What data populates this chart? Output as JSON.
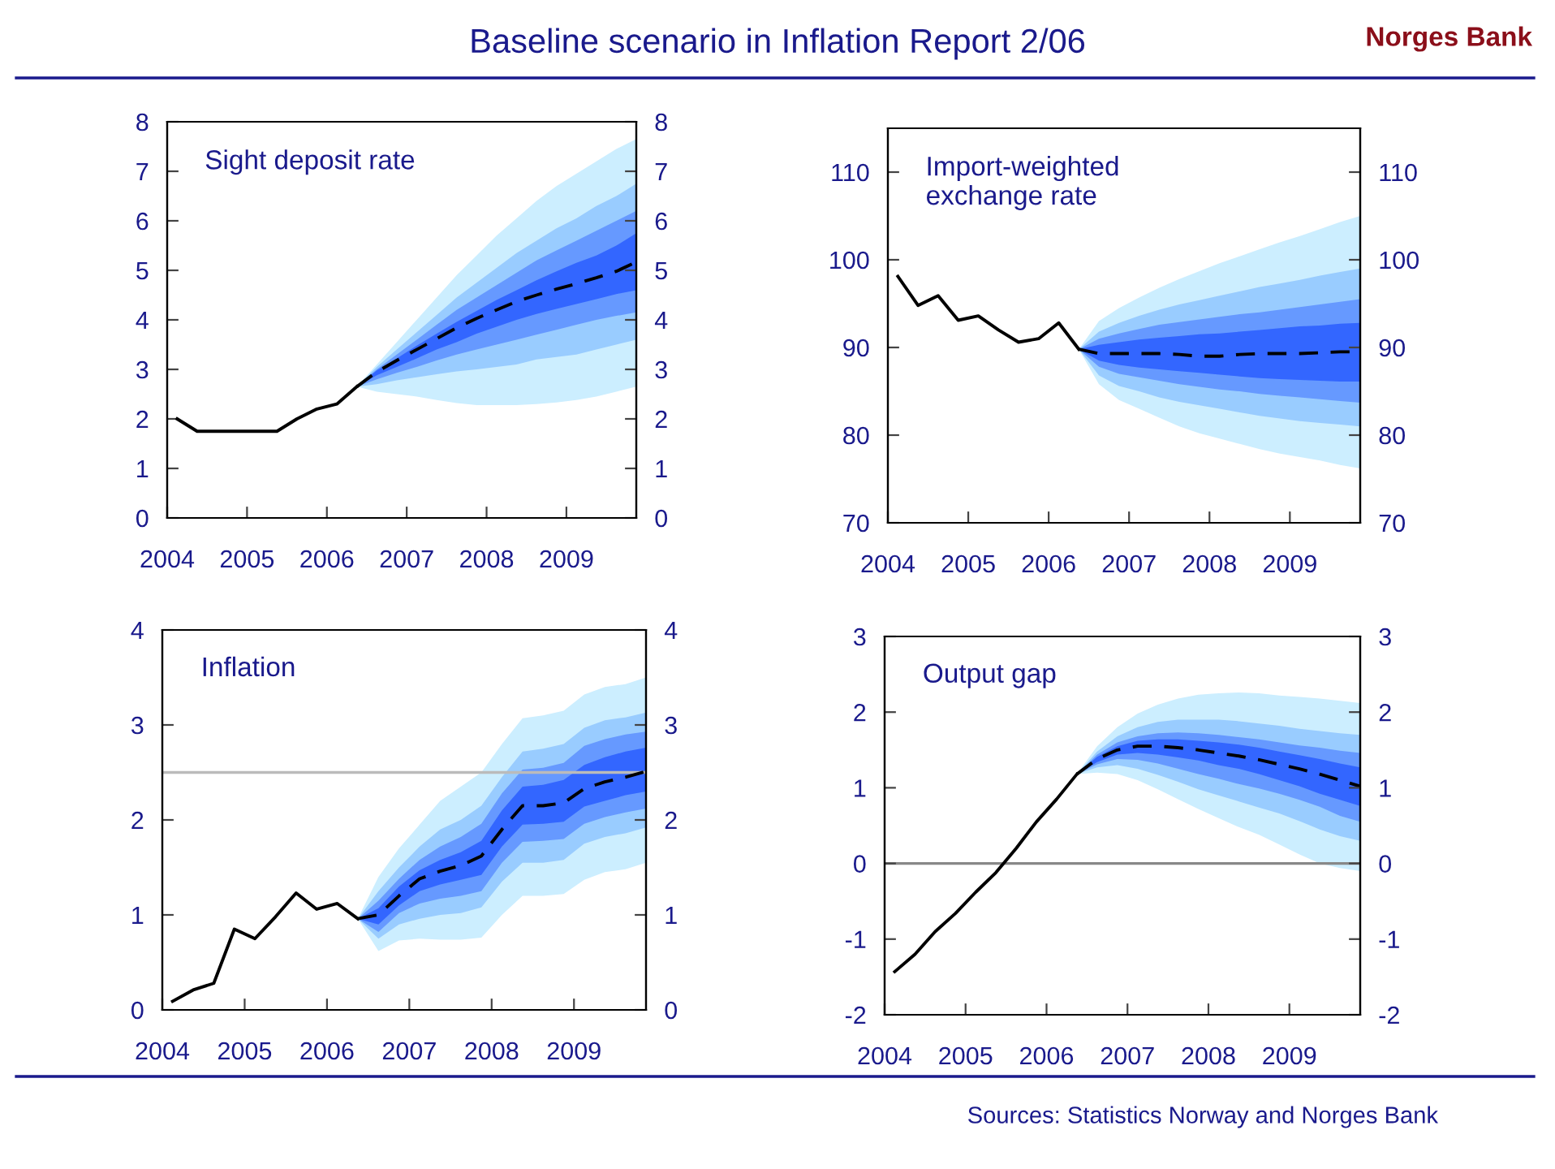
{
  "chart_data": [
    {
      "type": "other",
      "title": "Baseline scenario in Inflation Report 2/06",
      "annotations": [
        "Norges Bank",
        "Sources: Statistics Norway and Norges Bank"
      ]
    },
    {
      "type": "line",
      "title": "Sight deposit rate",
      "xlim": [
        2004,
        2009.875
      ],
      "xticks": [
        2004,
        2005,
        2006,
        2007,
        2008,
        2009
      ],
      "ylim": [
        0,
        8
      ],
      "yticks": [
        0,
        1,
        2,
        3,
        4,
        5,
        6,
        7,
        8
      ],
      "y2lim": [
        0,
        8
      ],
      "y2ticks": [
        0,
        1,
        2,
        3,
        4,
        5,
        6,
        7,
        8
      ],
      "series": [
        {
          "color": "#cceeff",
          "x": [
            2006.375,
            2006.625,
            2006.875,
            2007.125,
            2007.375,
            2007.625,
            2007.875,
            2008.125,
            2008.375,
            2008.625,
            2008.875,
            2009.125,
            2009.375,
            2009.625,
            2009.875
          ],
          "values": [
            null,
            null,
            null,
            null,
            null,
            null,
            null,
            null,
            null,
            null,
            null,
            null,
            null,
            null,
            null
          ],
          "lower": [
            2.65,
            2.55,
            2.5,
            2.45,
            2.38,
            2.32,
            2.28,
            2.28,
            2.28,
            2.3,
            2.33,
            2.38,
            2.45,
            2.55,
            2.65
          ],
          "upper": [
            2.65,
            3.1,
            3.55,
            4.0,
            4.45,
            4.9,
            5.3,
            5.7,
            6.05,
            6.4,
            6.7,
            6.95,
            7.2,
            7.45,
            7.65
          ]
        },
        {
          "color": "#99ccff",
          "x": [
            2006.375,
            2006.625,
            2006.875,
            2007.125,
            2007.375,
            2007.625,
            2007.875,
            2008.125,
            2008.375,
            2008.625,
            2008.875,
            2009.125,
            2009.375,
            2009.625,
            2009.875
          ],
          "values": [
            null,
            null,
            null,
            null,
            null,
            null,
            null,
            null,
            null,
            null,
            null,
            null,
            null,
            null,
            null
          ],
          "lower": [
            2.65,
            2.7,
            2.78,
            2.84,
            2.9,
            2.96,
            3.0,
            3.05,
            3.1,
            3.2,
            3.25,
            3.3,
            3.4,
            3.5,
            3.6
          ],
          "upper": [
            2.65,
            3.05,
            3.4,
            3.75,
            4.1,
            4.45,
            4.75,
            5.05,
            5.35,
            5.6,
            5.85,
            6.05,
            6.3,
            6.5,
            6.75
          ]
        },
        {
          "color": "#6699ff",
          "x": [
            2006.375,
            2006.625,
            2006.875,
            2007.125,
            2007.375,
            2007.625,
            2007.875,
            2008.125,
            2008.375,
            2008.625,
            2008.875,
            2009.125,
            2009.375,
            2009.625,
            2009.875
          ],
          "values": [
            null,
            null,
            null,
            null,
            null,
            null,
            null,
            null,
            null,
            null,
            null,
            null,
            null,
            null,
            null
          ],
          "lower": [
            2.65,
            2.8,
            2.93,
            3.05,
            3.18,
            3.3,
            3.4,
            3.5,
            3.6,
            3.7,
            3.8,
            3.9,
            4.0,
            4.08,
            4.15
          ],
          "upper": [
            2.65,
            3.0,
            3.3,
            3.6,
            3.9,
            4.2,
            4.45,
            4.7,
            4.95,
            5.2,
            5.4,
            5.6,
            5.8,
            6.0,
            6.2
          ]
        },
        {
          "color": "#3366ff",
          "x": [
            2006.375,
            2006.625,
            2006.875,
            2007.125,
            2007.375,
            2007.625,
            2007.875,
            2008.125,
            2008.375,
            2008.625,
            2008.875,
            2009.125,
            2009.375,
            2009.625,
            2009.875
          ],
          "values": [
            null,
            null,
            null,
            null,
            null,
            null,
            null,
            null,
            null,
            null,
            null,
            null,
            null,
            null,
            null
          ],
          "lower": [
            2.65,
            2.88,
            3.05,
            3.22,
            3.4,
            3.55,
            3.72,
            3.86,
            4.0,
            4.12,
            4.22,
            4.32,
            4.42,
            4.52,
            4.6
          ],
          "upper": [
            2.65,
            2.98,
            3.22,
            3.48,
            3.72,
            3.96,
            4.18,
            4.4,
            4.6,
            4.8,
            4.98,
            5.15,
            5.3,
            5.5,
            5.75
          ]
        },
        {
          "color": "#000000",
          "line_style": "solid",
          "x": [
            2004.125,
            2004.375,
            2004.625,
            2004.875,
            2005.125,
            2005.375,
            2005.625,
            2005.875,
            2006.125,
            2006.375
          ],
          "values": [
            2.0,
            1.75,
            1.75,
            1.75,
            1.75,
            1.75,
            2.0,
            2.2,
            2.3,
            2.65
          ]
        },
        {
          "color": "#000000",
          "line_style": "dashed",
          "x": [
            2006.375,
            2006.625,
            2006.875,
            2007.125,
            2007.375,
            2007.625,
            2007.875,
            2008.125,
            2008.375,
            2008.625,
            2008.875,
            2009.125,
            2009.375,
            2009.625,
            2009.875
          ],
          "values": [
            2.65,
            2.95,
            3.18,
            3.4,
            3.62,
            3.84,
            4.03,
            4.2,
            4.37,
            4.5,
            4.62,
            4.73,
            4.85,
            4.98,
            5.17
          ]
        }
      ]
    },
    {
      "type": "line",
      "title": "Import-weighted\nexchange rate",
      "xlim": [
        2004,
        2009.875
      ],
      "xticks": [
        2004,
        2005,
        2006,
        2007,
        2008,
        2009
      ],
      "ylim": [
        70,
        115
      ],
      "yticks": [
        70,
        80,
        90,
        100,
        110
      ],
      "y2lim": [
        70,
        115
      ],
      "y2ticks": [
        70,
        80,
        90,
        100,
        110
      ],
      "series": [
        {
          "color": "#cceeff",
          "x": [
            2006.375,
            2006.625,
            2006.875,
            2007.125,
            2007.375,
            2007.625,
            2007.875,
            2008.125,
            2008.375,
            2008.625,
            2008.875,
            2009.125,
            2009.375,
            2009.625,
            2009.875
          ],
          "values": [
            null,
            null,
            null,
            null,
            null,
            null,
            null,
            null,
            null,
            null,
            null,
            null,
            null,
            null,
            null
          ],
          "lower": [
            89.8,
            85.8,
            84.0,
            83.0,
            82.0,
            81.0,
            80.2,
            79.6,
            79.0,
            78.4,
            77.9,
            77.5,
            77.1,
            76.6,
            76.2
          ],
          "upper": [
            89.8,
            93.0,
            94.5,
            95.7,
            96.8,
            97.8,
            98.7,
            99.6,
            100.4,
            101.2,
            102.0,
            102.7,
            103.5,
            104.3,
            105.0
          ]
        },
        {
          "color": "#99ccff",
          "x": [
            2006.375,
            2006.625,
            2006.875,
            2007.125,
            2007.375,
            2007.625,
            2007.875,
            2008.125,
            2008.375,
            2008.625,
            2008.875,
            2009.125,
            2009.375,
            2009.625,
            2009.875
          ],
          "values": [
            null,
            null,
            null,
            null,
            null,
            null,
            null,
            null,
            null,
            null,
            null,
            null,
            null,
            null,
            null
          ],
          "lower": [
            89.8,
            86.8,
            85.6,
            85.0,
            84.3,
            83.8,
            83.4,
            83.0,
            82.6,
            82.2,
            81.9,
            81.6,
            81.4,
            81.2,
            81.0
          ],
          "upper": [
            89.8,
            91.8,
            92.8,
            93.6,
            94.3,
            94.9,
            95.4,
            95.9,
            96.4,
            96.9,
            97.3,
            97.7,
            98.2,
            98.6,
            99.0
          ]
        },
        {
          "color": "#6699ff",
          "x": [
            2006.375,
            2006.625,
            2006.875,
            2007.125,
            2007.375,
            2007.625,
            2007.875,
            2008.125,
            2008.375,
            2008.625,
            2008.875,
            2009.125,
            2009.375,
            2009.625,
            2009.875
          ],
          "values": [
            null,
            null,
            null,
            null,
            null,
            null,
            null,
            null,
            null,
            null,
            null,
            null,
            null,
            null,
            null
          ],
          "lower": [
            89.8,
            87.8,
            87.0,
            86.6,
            86.2,
            85.8,
            85.5,
            85.2,
            85.0,
            84.7,
            84.5,
            84.3,
            84.1,
            83.9,
            83.7
          ],
          "upper": [
            89.8,
            91.0,
            91.6,
            92.1,
            92.6,
            92.9,
            93.2,
            93.5,
            93.8,
            94.0,
            94.3,
            94.6,
            94.9,
            95.2,
            95.5
          ]
        },
        {
          "color": "#3366ff",
          "x": [
            2006.375,
            2006.625,
            2006.875,
            2007.125,
            2007.375,
            2007.625,
            2007.875,
            2008.125,
            2008.375,
            2008.625,
            2008.875,
            2009.125,
            2009.375,
            2009.625,
            2009.875
          ],
          "values": [
            null,
            null,
            null,
            null,
            null,
            null,
            null,
            null,
            null,
            null,
            null,
            null,
            null,
            null,
            null
          ],
          "lower": [
            89.8,
            88.5,
            88.0,
            87.7,
            87.5,
            87.3,
            87.1,
            86.9,
            86.7,
            86.5,
            86.4,
            86.3,
            86.2,
            86.1,
            86.1
          ],
          "upper": [
            89.8,
            90.3,
            90.6,
            90.9,
            91.1,
            91.3,
            91.5,
            91.6,
            91.8,
            92.0,
            92.2,
            92.4,
            92.5,
            92.7,
            92.8
          ]
        },
        {
          "color": "#000000",
          "line_style": "solid",
          "x": [
            2004.125,
            2004.375,
            2004.625,
            2004.875,
            2005.125,
            2005.375,
            2005.625,
            2005.875,
            2006.125,
            2006.375
          ],
          "values": [
            98.1,
            94.8,
            95.9,
            93.1,
            93.6,
            92.0,
            90.6,
            91.0,
            92.8,
            89.8
          ]
        },
        {
          "color": "#000000",
          "line_style": "dashed",
          "x": [
            2006.375,
            2006.625,
            2006.875,
            2007.125,
            2007.375,
            2007.625,
            2007.875,
            2008.125,
            2008.375,
            2008.625,
            2008.875,
            2009.125,
            2009.375,
            2009.625,
            2009.875
          ],
          "values": [
            89.8,
            89.3,
            89.3,
            89.3,
            89.3,
            89.2,
            89.0,
            89.0,
            89.2,
            89.3,
            89.3,
            89.3,
            89.4,
            89.5,
            89.5
          ]
        }
      ]
    },
    {
      "type": "line",
      "title": "Inflation",
      "xlim": [
        2004,
        2009.875
      ],
      "xticks": [
        2004,
        2005,
        2006,
        2007,
        2008,
        2009
      ],
      "ylim": [
        0,
        4
      ],
      "yticks": [
        0,
        1,
        2,
        3,
        4
      ],
      "y2lim": [
        0,
        4
      ],
      "y2ticks": [
        0,
        1,
        2,
        3,
        4
      ],
      "ref_lines": [
        {
          "axis": "y",
          "value": 2.5,
          "color": "#bbbbbb"
        }
      ],
      "series": [
        {
          "color": "#cceeff",
          "x": [
            2006.375,
            2006.625,
            2006.875,
            2007.125,
            2007.375,
            2007.625,
            2007.875,
            2008.125,
            2008.375,
            2008.625,
            2008.875,
            2009.125,
            2009.375,
            2009.625,
            2009.875
          ],
          "values": [
            null,
            null,
            null,
            null,
            null,
            null,
            null,
            null,
            null,
            null,
            null,
            null,
            null,
            null,
            null
          ],
          "lower": [
            0.96,
            0.62,
            0.73,
            0.75,
            0.74,
            0.74,
            0.76,
            1.0,
            1.2,
            1.2,
            1.22,
            1.37,
            1.45,
            1.48,
            1.55
          ],
          "upper": [
            0.96,
            1.4,
            1.7,
            1.95,
            2.2,
            2.35,
            2.5,
            2.8,
            3.07,
            3.1,
            3.15,
            3.32,
            3.4,
            3.43,
            3.5
          ]
        },
        {
          "color": "#99ccff",
          "x": [
            2006.375,
            2006.625,
            2006.875,
            2007.125,
            2007.375,
            2007.625,
            2007.875,
            2008.125,
            2008.375,
            2008.625,
            2008.875,
            2009.125,
            2009.375,
            2009.625,
            2009.875
          ],
          "values": [
            null,
            null,
            null,
            null,
            null,
            null,
            null,
            null,
            null,
            null,
            null,
            null,
            null,
            null,
            null
          ],
          "lower": [
            0.96,
            0.75,
            0.9,
            0.96,
            1.0,
            1.02,
            1.08,
            1.35,
            1.55,
            1.55,
            1.58,
            1.75,
            1.82,
            1.86,
            1.92
          ],
          "upper": [
            0.96,
            1.25,
            1.5,
            1.72,
            1.9,
            2.0,
            2.15,
            2.45,
            2.72,
            2.75,
            2.8,
            2.97,
            3.05,
            3.08,
            3.13
          ]
        },
        {
          "color": "#6699ff",
          "x": [
            2006.375,
            2006.625,
            2006.875,
            2007.125,
            2007.375,
            2007.625,
            2007.875,
            2008.125,
            2008.375,
            2008.625,
            2008.875,
            2009.125,
            2009.375,
            2009.625,
            2009.875
          ],
          "values": [
            null,
            null,
            null,
            null,
            null,
            null,
            null,
            null,
            null,
            null,
            null,
            null,
            null,
            null,
            null
          ],
          "lower": [
            0.96,
            0.82,
            1.02,
            1.12,
            1.17,
            1.2,
            1.25,
            1.55,
            1.77,
            1.78,
            1.8,
            1.96,
            2.03,
            2.08,
            2.12
          ],
          "upper": [
            0.96,
            1.15,
            1.38,
            1.58,
            1.72,
            1.82,
            1.96,
            2.28,
            2.53,
            2.55,
            2.6,
            2.78,
            2.85,
            2.9,
            2.93
          ]
        },
        {
          "color": "#3366ff",
          "x": [
            2006.375,
            2006.625,
            2006.875,
            2007.125,
            2007.375,
            2007.625,
            2007.875,
            2008.125,
            2008.375,
            2008.625,
            2008.875,
            2009.125,
            2009.375,
            2009.625,
            2009.875
          ],
          "values": [
            null,
            null,
            null,
            null,
            null,
            null,
            null,
            null,
            null,
            null,
            null,
            null,
            null,
            null,
            null
          ],
          "lower": [
            0.96,
            0.9,
            1.1,
            1.25,
            1.32,
            1.37,
            1.42,
            1.72,
            1.95,
            1.96,
            1.98,
            2.14,
            2.2,
            2.26,
            2.3
          ],
          "upper": [
            0.96,
            1.07,
            1.3,
            1.47,
            1.58,
            1.66,
            1.78,
            2.1,
            2.35,
            2.37,
            2.42,
            2.58,
            2.66,
            2.72,
            2.76
          ]
        },
        {
          "color": "#000000",
          "line_style": "solid",
          "x": [
            2004.125,
            2004.375,
            2004.625,
            2004.875,
            2005.125,
            2005.375,
            2005.625,
            2005.875,
            2006.125,
            2006.375
          ],
          "values": [
            0.09,
            0.21,
            0.28,
            0.85,
            0.75,
            0.98,
            1.23,
            1.06,
            1.12,
            0.96
          ]
        },
        {
          "color": "#000000",
          "line_style": "dashed",
          "x": [
            2006.375,
            2006.625,
            2006.875,
            2007.125,
            2007.375,
            2007.625,
            2007.875,
            2008.125,
            2008.375,
            2008.625,
            2008.875,
            2009.125,
            2009.375,
            2009.625,
            2009.875
          ],
          "values": [
            0.96,
            1.0,
            1.2,
            1.38,
            1.46,
            1.52,
            1.62,
            1.9,
            2.15,
            2.15,
            2.18,
            2.33,
            2.4,
            2.45,
            2.51
          ]
        }
      ]
    },
    {
      "type": "line",
      "title": "Output gap",
      "xlim": [
        2004,
        2009.875
      ],
      "xticks": [
        2004,
        2005,
        2006,
        2007,
        2008,
        2009
      ],
      "ylim": [
        -2,
        3
      ],
      "yticks": [
        -2,
        -1,
        0,
        1,
        2,
        3
      ],
      "y2lim": [
        -2,
        3
      ],
      "y2ticks": [
        -2,
        -1,
        0,
        1,
        2,
        3
      ],
      "ref_lines": [
        {
          "axis": "y",
          "value": 0,
          "color": "#888888"
        }
      ],
      "series": [
        {
          "color": "#cceeff",
          "x": [
            2006.375,
            2006.625,
            2006.875,
            2007.125,
            2007.375,
            2007.625,
            2007.875,
            2008.125,
            2008.375,
            2008.625,
            2008.875,
            2009.125,
            2009.375,
            2009.625,
            2009.875
          ],
          "values": [
            null,
            null,
            null,
            null,
            null,
            null,
            null,
            null,
            null,
            null,
            null,
            null,
            null,
            null,
            null
          ],
          "lower": [
            1.18,
            1.2,
            1.18,
            1.1,
            0.98,
            0.85,
            0.72,
            0.6,
            0.48,
            0.38,
            0.25,
            0.12,
            0.0,
            -0.06,
            -0.1
          ],
          "upper": [
            1.18,
            1.55,
            1.8,
            1.98,
            2.1,
            2.18,
            2.23,
            2.25,
            2.26,
            2.25,
            2.22,
            2.2,
            2.18,
            2.15,
            2.12
          ]
        },
        {
          "color": "#99ccff",
          "x": [
            2006.375,
            2006.625,
            2006.875,
            2007.125,
            2007.375,
            2007.625,
            2007.875,
            2008.125,
            2008.375,
            2008.625,
            2008.875,
            2009.125,
            2009.375,
            2009.625,
            2009.875
          ],
          "values": [
            null,
            null,
            null,
            null,
            null,
            null,
            null,
            null,
            null,
            null,
            null,
            null,
            null,
            null,
            null
          ],
          "lower": [
            1.18,
            1.27,
            1.3,
            1.25,
            1.17,
            1.08,
            0.98,
            0.9,
            0.82,
            0.74,
            0.66,
            0.56,
            0.45,
            0.36,
            0.3
          ],
          "upper": [
            1.18,
            1.48,
            1.68,
            1.8,
            1.87,
            1.9,
            1.9,
            1.9,
            1.88,
            1.85,
            1.82,
            1.78,
            1.75,
            1.72,
            1.7
          ]
        },
        {
          "color": "#6699ff",
          "x": [
            2006.375,
            2006.625,
            2006.875,
            2007.125,
            2007.375,
            2007.625,
            2007.875,
            2008.125,
            2008.375,
            2008.625,
            2008.875,
            2009.125,
            2009.375,
            2009.625,
            2009.875
          ],
          "values": [
            null,
            null,
            null,
            null,
            null,
            null,
            null,
            null,
            null,
            null,
            null,
            null,
            null,
            null,
            null
          ],
          "lower": [
            1.18,
            1.31,
            1.38,
            1.37,
            1.32,
            1.25,
            1.18,
            1.12,
            1.05,
            0.99,
            0.92,
            0.84,
            0.75,
            0.63,
            0.55
          ],
          "upper": [
            1.18,
            1.44,
            1.6,
            1.68,
            1.72,
            1.73,
            1.72,
            1.7,
            1.67,
            1.64,
            1.6,
            1.56,
            1.53,
            1.49,
            1.46
          ]
        },
        {
          "color": "#3366ff",
          "x": [
            2006.375,
            2006.625,
            2006.875,
            2007.125,
            2007.375,
            2007.625,
            2007.875,
            2008.125,
            2008.375,
            2008.625,
            2008.875,
            2009.125,
            2009.375,
            2009.625,
            2009.875
          ],
          "values": [
            null,
            null,
            null,
            null,
            null,
            null,
            null,
            null,
            null,
            null,
            null,
            null,
            null,
            null,
            null
          ],
          "lower": [
            1.18,
            1.34,
            1.44,
            1.46,
            1.44,
            1.4,
            1.36,
            1.3,
            1.25,
            1.18,
            1.1,
            1.02,
            0.92,
            0.84,
            0.76
          ],
          "upper": [
            1.18,
            1.41,
            1.55,
            1.62,
            1.64,
            1.64,
            1.62,
            1.6,
            1.57,
            1.53,
            1.48,
            1.43,
            1.38,
            1.32,
            1.27
          ]
        },
        {
          "color": "#000000",
          "line_style": "solid",
          "x": [
            2004.125,
            2004.375,
            2004.625,
            2004.875,
            2005.125,
            2005.375,
            2005.625,
            2005.875,
            2006.125,
            2006.375
          ],
          "values": [
            -1.43,
            -1.2,
            -0.9,
            -0.66,
            -0.38,
            -0.12,
            0.2,
            0.55,
            0.85,
            1.18
          ]
        },
        {
          "color": "#000000",
          "line_style": "dashed",
          "x": [
            2006.375,
            2006.625,
            2006.875,
            2007.125,
            2007.375,
            2007.625,
            2007.875,
            2008.125,
            2008.375,
            2008.625,
            2008.875,
            2009.125,
            2009.375,
            2009.625,
            2009.875
          ],
          "values": [
            1.18,
            1.38,
            1.5,
            1.55,
            1.55,
            1.53,
            1.5,
            1.46,
            1.42,
            1.37,
            1.31,
            1.25,
            1.18,
            1.1,
            1.02
          ]
        }
      ]
    }
  ]
}
